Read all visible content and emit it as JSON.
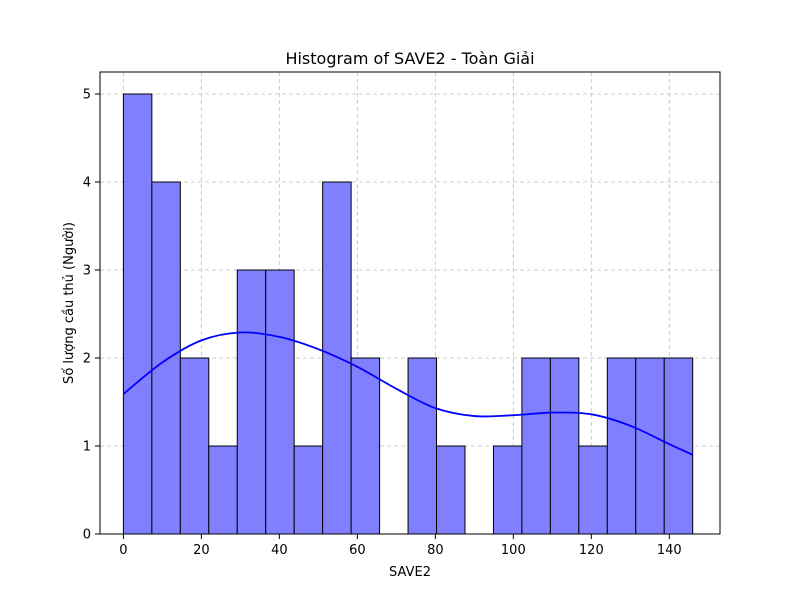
{
  "chart_data": {
    "type": "bar",
    "title": "Histogram of SAVE2 - Toàn Giải",
    "xlabel": "SAVE2",
    "ylabel": "Số lượng cầu thủ (Người)",
    "xlim": [
      -6,
      153
    ],
    "ylim": [
      0,
      5.25
    ],
    "x_ticks": [
      0,
      20,
      40,
      60,
      80,
      100,
      120,
      140
    ],
    "y_ticks": [
      0,
      1,
      2,
      3,
      4,
      5
    ],
    "grid": true,
    "legend": "none",
    "bin_start": 0,
    "bin_width": 7.3,
    "values": [
      5,
      4,
      2,
      1,
      3,
      3,
      1,
      4,
      2,
      0,
      2,
      1,
      0,
      1,
      2,
      2,
      1,
      2,
      2,
      2
    ],
    "kde": {
      "x": [
        0,
        10,
        20,
        30,
        40,
        50,
        60,
        70,
        80,
        90,
        100,
        110,
        120,
        130,
        140,
        146
      ],
      "y": [
        1.59,
        1.95,
        2.2,
        2.29,
        2.24,
        2.1,
        1.9,
        1.65,
        1.43,
        1.34,
        1.35,
        1.38,
        1.36,
        1.23,
        1.02,
        0.9
      ]
    },
    "colors": {
      "bar_fill": "#8080ff",
      "bar_edge": "#000000",
      "kde_line": "#0000ff",
      "grid": "#cccccc"
    }
  }
}
